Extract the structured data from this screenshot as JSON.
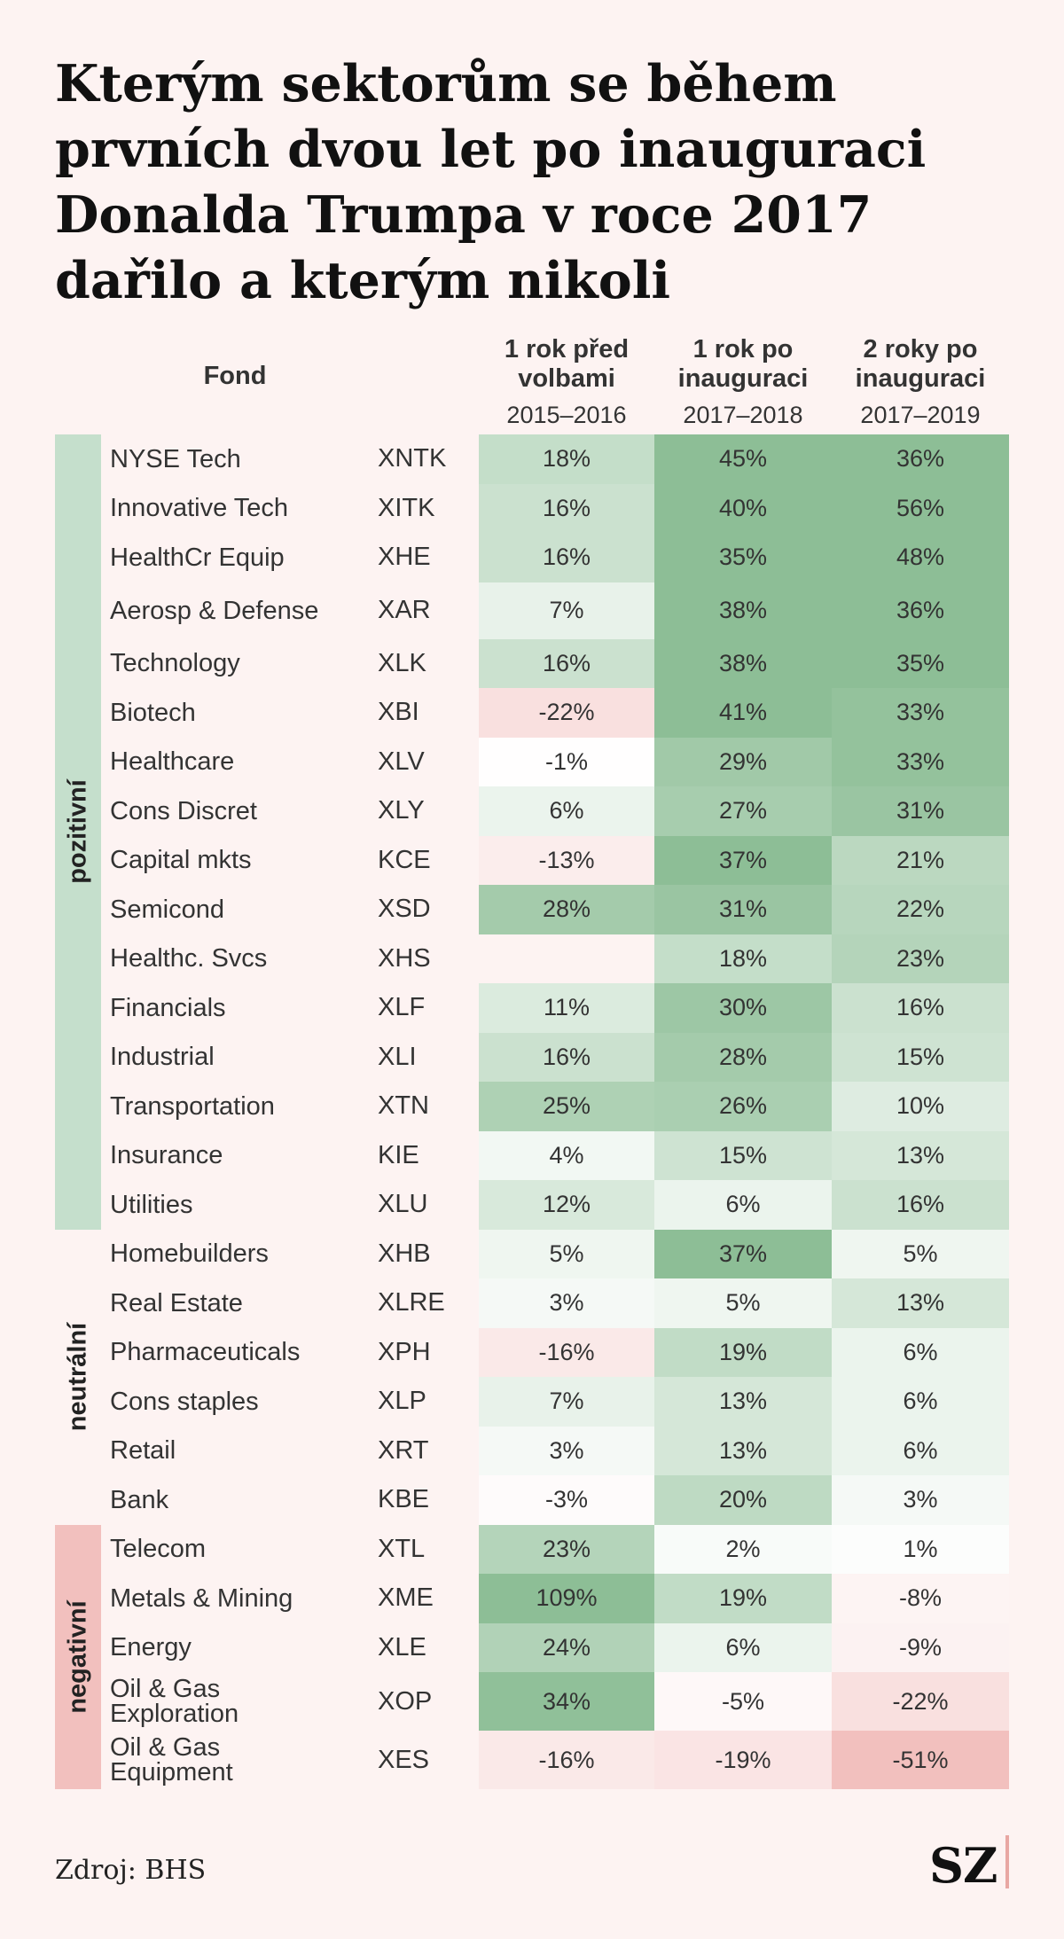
{
  "title": "Kterým sektorům se během prvních dvou let po inauguraci Donalda Trumpa v roce 2017 dařilo a kterým nikoli",
  "source": "Zdroj: BHS",
  "logo": "SZ",
  "colors": {
    "background": "#fdf3f2",
    "positive_scale_max": "#8dbe96",
    "negative_scale_max": "#f2c0be",
    "group_pozitivni": "#c5dfcc",
    "group_neutralni": "#fdf3f2",
    "group_negativni": "#f2c0be"
  },
  "chart_data": {
    "type": "table",
    "title": "Kterým sektorům se během prvních dvou let po inauguraci Donalda Trumpa v roce 2017 dařilo a kterým nikoli",
    "name_header": "Fond",
    "columns": [
      {
        "header": "1 rok před volbami",
        "period": "2015–2016"
      },
      {
        "header": "1 rok po inauguraci",
        "period": "2017–2018"
      },
      {
        "header": "2 roky po inauguraci",
        "period": "2017–2019"
      }
    ],
    "groups": [
      {
        "label": "pozitivní",
        "color": "#c5dfcc",
        "start": 0,
        "count": 16
      },
      {
        "label": "neutrální",
        "color": "#fdf3f2",
        "start": 16,
        "count": 6
      },
      {
        "label": "negativní",
        "color": "#f2c0be",
        "start": 22,
        "count": 5
      }
    ],
    "rows": [
      {
        "name": "NYSE Tech",
        "ticker": "XNTK",
        "values": [
          18,
          45,
          36
        ]
      },
      {
        "name": "Innovative Tech",
        "ticker": "XITK",
        "values": [
          16,
          40,
          56
        ]
      },
      {
        "name": "HealthCr Equip",
        "ticker": "XHE",
        "values": [
          16,
          35,
          48
        ]
      },
      {
        "name": "Aerosp & Defense",
        "ticker": "XAR",
        "values": [
          7,
          38,
          36
        ]
      },
      {
        "name": "Technology",
        "ticker": "XLK",
        "values": [
          16,
          38,
          35
        ]
      },
      {
        "name": "Biotech",
        "ticker": "XBI",
        "values": [
          -22,
          41,
          33
        ]
      },
      {
        "name": "Healthcare",
        "ticker": "XLV",
        "values": [
          -1,
          29,
          33
        ]
      },
      {
        "name": "Cons Discret",
        "ticker": "XLY",
        "values": [
          6,
          27,
          31
        ]
      },
      {
        "name": "Capital mkts",
        "ticker": "KCE",
        "values": [
          -13,
          37,
          21
        ]
      },
      {
        "name": "Semicond",
        "ticker": "XSD",
        "values": [
          28,
          31,
          22
        ]
      },
      {
        "name": "Healthc. Svcs",
        "ticker": "XHS",
        "values": [
          null,
          18,
          23
        ]
      },
      {
        "name": "Financials",
        "ticker": "XLF",
        "values": [
          11,
          30,
          16
        ]
      },
      {
        "name": "Industrial",
        "ticker": "XLI",
        "values": [
          16,
          28,
          15
        ]
      },
      {
        "name": "Transportation",
        "ticker": "XTN",
        "values": [
          25,
          26,
          10
        ]
      },
      {
        "name": "Insurance",
        "ticker": "KIE",
        "values": [
          4,
          15,
          13
        ]
      },
      {
        "name": "Utilities",
        "ticker": "XLU",
        "values": [
          12,
          6,
          16
        ]
      },
      {
        "name": "Homebuilders",
        "ticker": "XHB",
        "values": [
          5,
          37,
          5
        ]
      },
      {
        "name": "Real Estate",
        "ticker": "XLRE",
        "values": [
          3,
          5,
          13
        ]
      },
      {
        "name": "Pharmaceuticals",
        "ticker": "XPH",
        "values": [
          -16,
          19,
          6
        ]
      },
      {
        "name": "Cons staples",
        "ticker": "XLP",
        "values": [
          7,
          13,
          6
        ]
      },
      {
        "name": "Retail",
        "ticker": "XRT",
        "values": [
          3,
          13,
          6
        ]
      },
      {
        "name": "Bank",
        "ticker": "KBE",
        "values": [
          -3,
          20,
          3
        ]
      },
      {
        "name": "Telecom",
        "ticker": "XTL",
        "values": [
          23,
          2,
          1
        ]
      },
      {
        "name": "Metals & Mining",
        "ticker": "XME",
        "values": [
          109,
          19,
          -8
        ]
      },
      {
        "name": "Energy",
        "ticker": "XLE",
        "values": [
          24,
          6,
          -9
        ]
      },
      {
        "name": "Oil & Gas\nExploration",
        "ticker": "XOP",
        "values": [
          34,
          -5,
          -22
        ]
      },
      {
        "name": "Oil & Gas\nEquipment",
        "ticker": "XES",
        "values": [
          -16,
          -19,
          -51
        ]
      }
    ]
  }
}
